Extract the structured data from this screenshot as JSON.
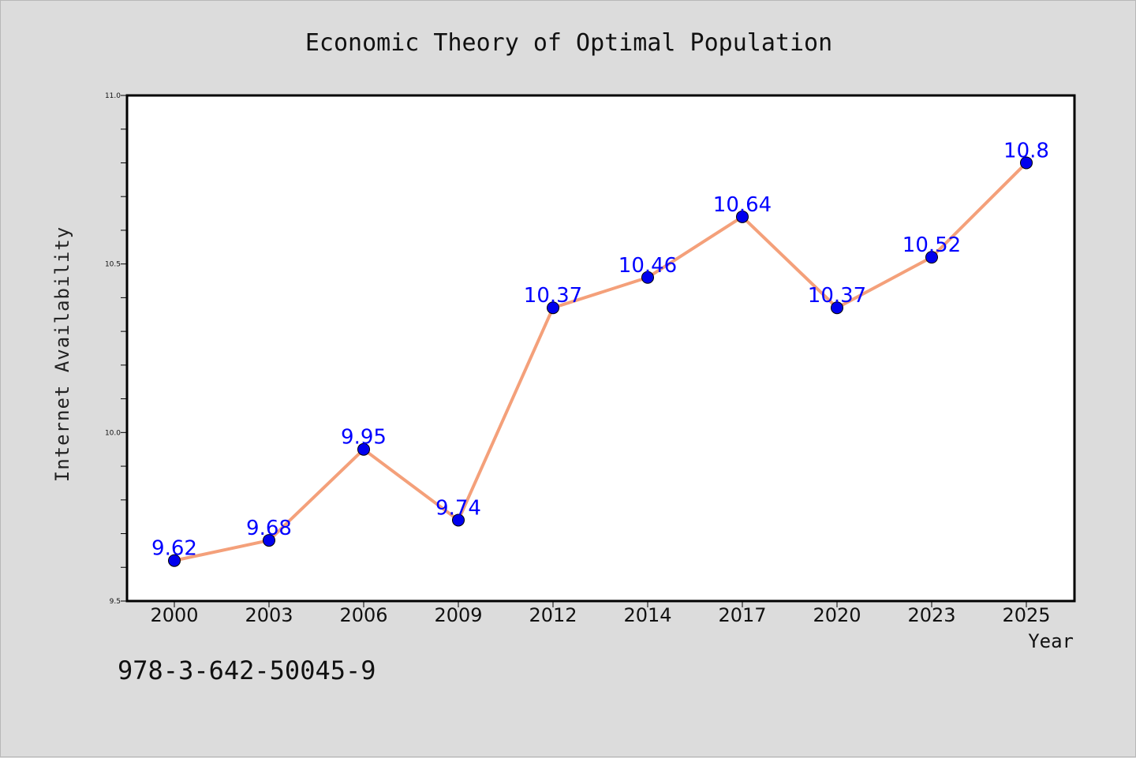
{
  "chart_data": {
    "type": "line",
    "title": "Economic Theory of Optimal Population",
    "xlabel": "Year",
    "ylabel": "Internet Availability",
    "categories": [
      "2000",
      "2003",
      "2006",
      "2009",
      "2012",
      "2014",
      "2017",
      "2020",
      "2023",
      "2025"
    ],
    "series": [
      {
        "values": [
          9.62,
          9.68,
          9.95,
          9.74,
          10.37,
          10.46,
          10.64,
          10.37,
          10.52,
          10.8
        ]
      }
    ],
    "data_labels": [
      "9.62",
      "9.68",
      "9.95",
      "9.74",
      "10.37",
      "10.46",
      "10.64",
      "10.37",
      "10.52",
      "10.8"
    ],
    "ylim": [
      9.5,
      11.0
    ],
    "yticks": [
      "9.5",
      "10.0",
      "10.5",
      "11.0"
    ],
    "grid": false,
    "colors": {
      "line": "#f4a07a",
      "marker": "#0000ee",
      "label": "#0000ff",
      "background": "#dcdcdc",
      "plot": "#ffffff"
    }
  },
  "footer": {
    "isbn": "978-3-642-50045-9"
  }
}
